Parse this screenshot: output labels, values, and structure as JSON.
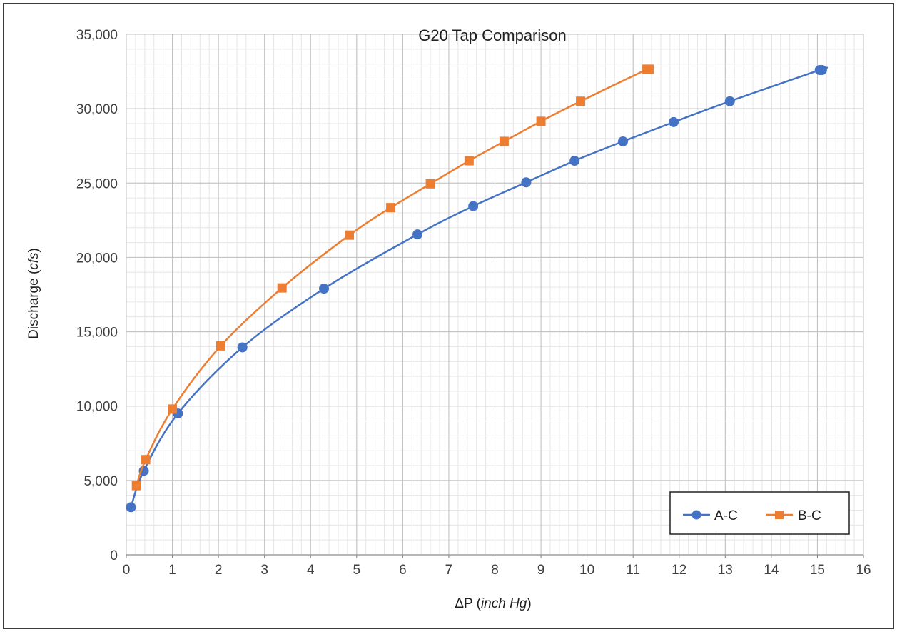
{
  "chart_data": {
    "type": "line",
    "title": "G20 Tap Comparison",
    "xlabel": {
      "prefix": "ΔP (",
      "italic": "inch Hg",
      "suffix": ")"
    },
    "ylabel": {
      "prefix": "Discharge (",
      "italic": "cfs",
      "suffix": ")"
    },
    "xlim": [
      0,
      16
    ],
    "ylim": [
      0,
      35000
    ],
    "x_ticks": [
      0,
      1,
      2,
      3,
      4,
      5,
      6,
      7,
      8,
      9,
      10,
      11,
      12,
      13,
      14,
      15,
      16
    ],
    "y_ticks": [
      0,
      5000,
      10000,
      15000,
      20000,
      25000,
      30000,
      35000
    ],
    "x_tick_labels": [
      "0",
      "1",
      "2",
      "3",
      "4",
      "5",
      "6",
      "7",
      "8",
      "9",
      "10",
      "11",
      "12",
      "13",
      "14",
      "15",
      "16"
    ],
    "y_tick_labels": [
      "0",
      "5,000",
      "10,000",
      "15,000",
      "20,000",
      "25,000",
      "30,000",
      "35,000"
    ],
    "grid": {
      "major": true,
      "minor_x_step": 0.2,
      "minor_y_step": 1000
    },
    "legend_position": "bottom-right",
    "series": [
      {
        "name": "A-C",
        "color": "#4472C4",
        "marker": "circle",
        "points": [
          [
            0.1,
            3200
          ],
          [
            0.38,
            5650
          ],
          [
            1.12,
            9500
          ],
          [
            2.52,
            13950
          ],
          [
            4.29,
            17900
          ],
          [
            6.32,
            21550
          ],
          [
            7.53,
            23450
          ],
          [
            8.68,
            25050
          ],
          [
            9.73,
            26500
          ],
          [
            10.78,
            27800
          ],
          [
            11.88,
            29100
          ],
          [
            13.1,
            30500
          ],
          [
            15.05,
            32600
          ],
          [
            15.1,
            32600
          ]
        ]
      },
      {
        "name": "B-C",
        "color": "#ED7D31",
        "marker": "square",
        "points": [
          [
            0.22,
            4650
          ],
          [
            0.42,
            6400
          ],
          [
            1.0,
            9800
          ],
          [
            2.05,
            14050
          ],
          [
            3.38,
            17950
          ],
          [
            4.84,
            21500
          ],
          [
            5.74,
            23350
          ],
          [
            6.6,
            24950
          ],
          [
            7.44,
            26500
          ],
          [
            8.2,
            27800
          ],
          [
            9.0,
            29150
          ],
          [
            9.86,
            30500
          ],
          [
            11.3,
            32650
          ],
          [
            11.35,
            32650
          ]
        ]
      }
    ]
  }
}
